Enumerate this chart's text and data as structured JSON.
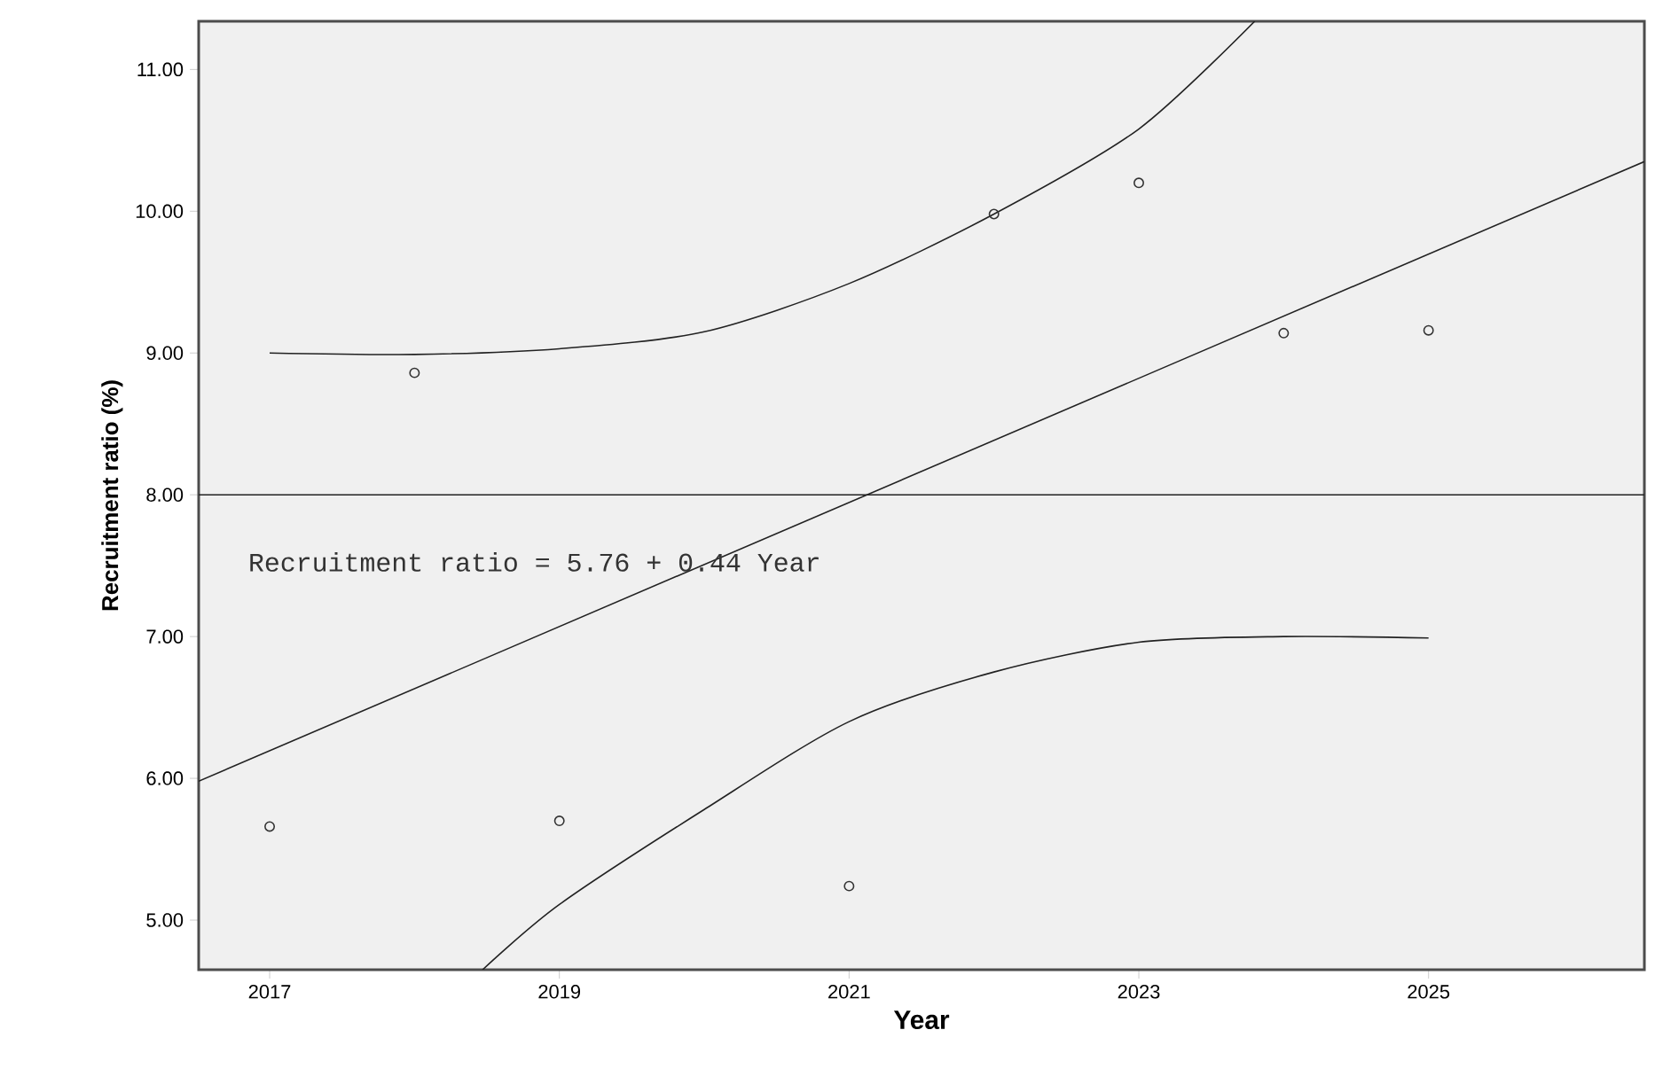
{
  "chart_data": {
    "type": "line",
    "xlabel": "Year",
    "ylabel": "Recruitment ratio (%)",
    "xlim": [
      2016.51,
      2026.49
    ],
    "ylim": [
      4.65,
      11.34
    ],
    "xticks": [
      2017,
      2019,
      2021,
      2023,
      2025
    ],
    "yticks": [
      {
        "value": 5,
        "label": "5.00"
      },
      {
        "value": 6,
        "label": "6.00"
      },
      {
        "value": 7,
        "label": "7.00"
      },
      {
        "value": 8,
        "label": "8.00"
      },
      {
        "value": 9,
        "label": "9.00"
      },
      {
        "value": 10,
        "label": "10.00"
      },
      {
        "value": 11,
        "label": "11.00"
      }
    ],
    "grid": false,
    "series": [
      {
        "type": "scatter",
        "marker": "circle",
        "color": "#333333",
        "x": [
          2017,
          2018,
          2019,
          2021,
          2022,
          2023,
          2024,
          2025
        ],
        "values": [
          5.66,
          8.86,
          5.7,
          5.24,
          9.98,
          10.2,
          9.14,
          9.16
        ]
      },
      {
        "marker": "none",
        "color": "#222222",
        "x": [
          2016.51,
          2026.49
        ],
        "values": [
          5.98,
          10.35
        ]
      },
      {
        "marker": "none",
        "color": "#222222",
        "x": [
          2017,
          2018,
          2019,
          2020,
          2021,
          2022,
          2023,
          2023.8
        ],
        "values": [
          9.0,
          8.99,
          9.03,
          9.15,
          9.49,
          9.98,
          10.58,
          11.34
        ]
      },
      {
        "marker": "none",
        "color": "#222222",
        "x": [
          2018.47,
          2019,
          2020,
          2021,
          2022,
          2023,
          2024,
          2025
        ],
        "values": [
          4.65,
          5.11,
          5.78,
          6.4,
          6.75,
          6.96,
          7.0,
          6.99
        ]
      }
    ],
    "ref_lines": [
      {
        "axis": "y",
        "value": 8,
        "color": "#222222"
      }
    ],
    "annotations": [
      "Recruitment ratio = 5.76 + 0.44 Year"
    ]
  }
}
